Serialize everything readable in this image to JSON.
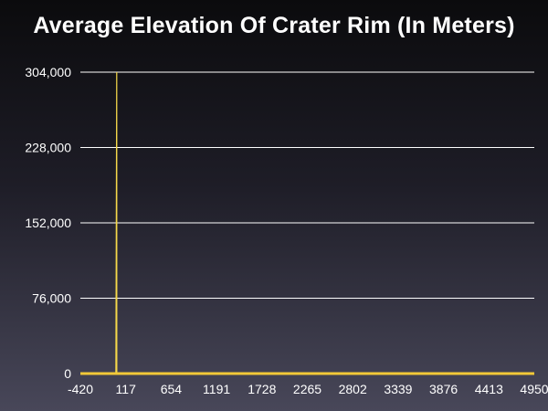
{
  "chart_data": {
    "type": "area",
    "title": "Average Elevation Of Crater Rim (In Meters)",
    "xlabel": "",
    "ylabel": "",
    "x_ticks": [
      "-420",
      "117",
      "654",
      "1191",
      "1728",
      "2265",
      "2802",
      "3339",
      "3876",
      "4413",
      "4950"
    ],
    "y_ticks": [
      "0",
      "76,000",
      "152,000",
      "228,000",
      "304,000"
    ],
    "xlim": [
      -420,
      4950
    ],
    "ylim": [
      0,
      304000
    ],
    "grid": true,
    "legend": "none",
    "series": [
      {
        "x": [
          -420,
          0,
          10,
          11,
          4950
        ],
        "y": [
          0,
          0,
          304000,
          0,
          0
        ]
      }
    ],
    "colors": {
      "series": "#f5d84a",
      "baseline": "#f2c838",
      "grid": "#ffffff",
      "axis_text": "#ffffff"
    }
  }
}
